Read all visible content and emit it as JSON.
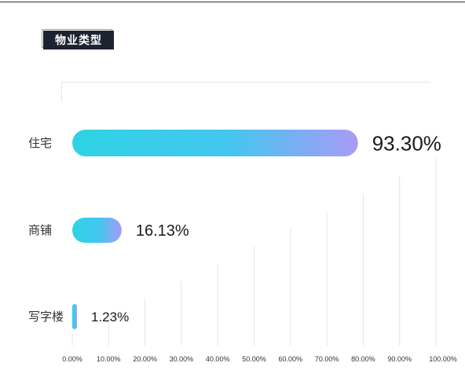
{
  "header": {
    "title": "物业类型"
  },
  "chart_data": {
    "type": "bar",
    "orientation": "horizontal",
    "title": "物业类型",
    "categories": [
      "住宅",
      "商铺",
      "写字楼"
    ],
    "values": [
      93.3,
      16.13,
      1.23
    ],
    "value_labels": [
      "93.30%",
      "16.13%",
      "1.23%"
    ],
    "x_ticks": [
      "0.00%",
      "10.00%",
      "20.00%",
      "30.00%",
      "40.00%",
      "50.00%",
      "60.00%",
      "70.00%",
      "80.00%",
      "90.00%",
      "100.00%"
    ],
    "xlim": [
      0,
      100
    ],
    "grid": true,
    "colors": {
      "bar_start": "#2ed3e3",
      "bar_end": "#a99af7",
      "grid": "#e4e4e4"
    }
  }
}
